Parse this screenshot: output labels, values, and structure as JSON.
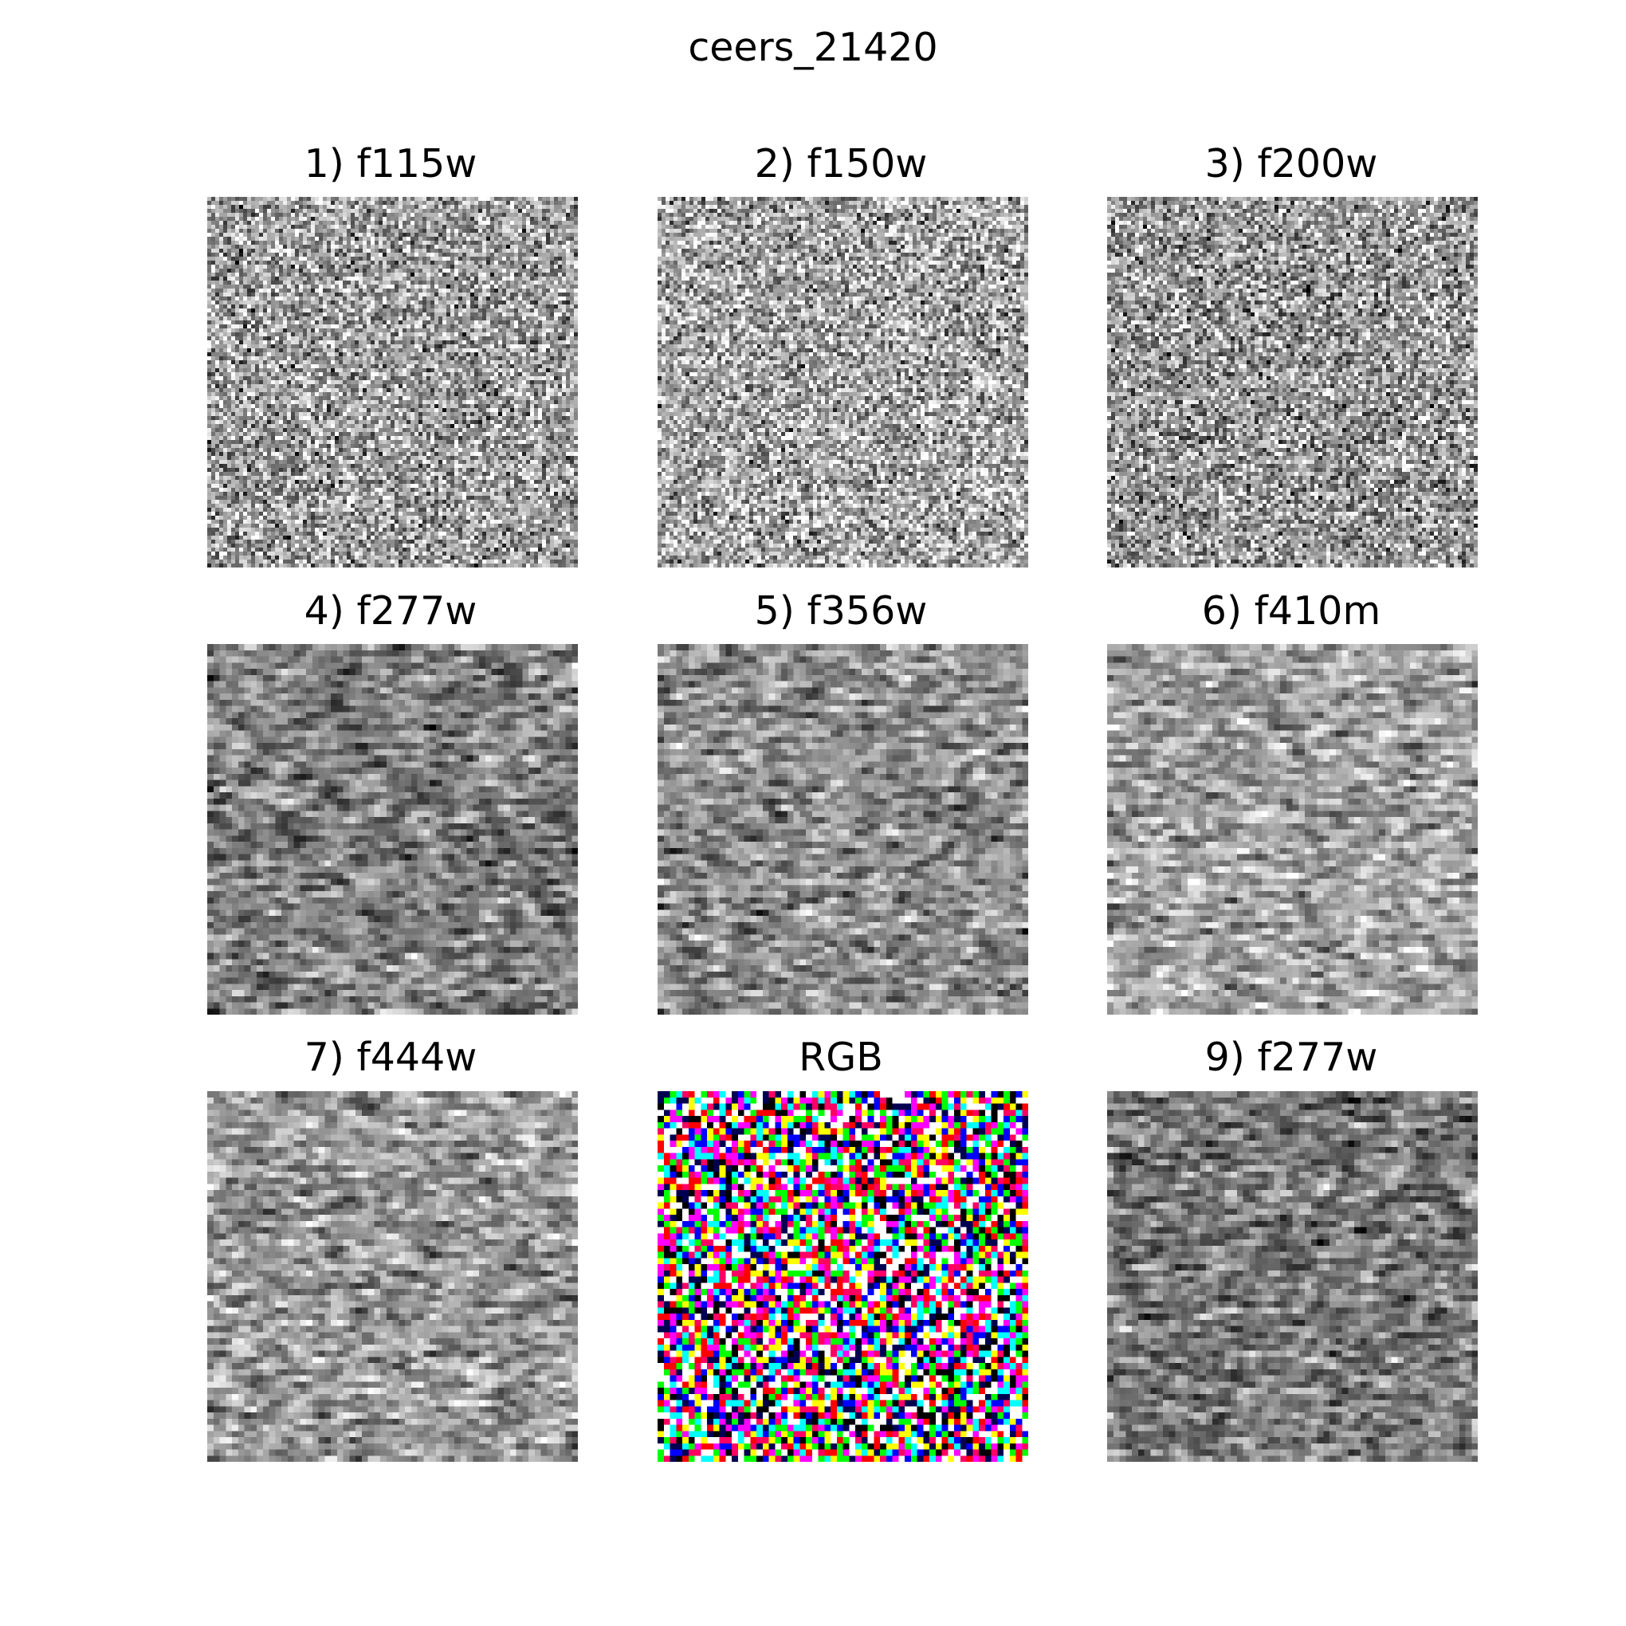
{
  "figure": {
    "title": "ceers_21420"
  },
  "panels": [
    {
      "label": "1) f115w",
      "kind": "grayscale",
      "texture": "fine-noise",
      "mean_brightness": 0.62,
      "seed": 11
    },
    {
      "label": "2) f150w",
      "kind": "grayscale",
      "texture": "fine-noise",
      "mean_brightness": 0.66,
      "seed": 23
    },
    {
      "label": "3) f200w",
      "kind": "grayscale",
      "texture": "fine-noise",
      "mean_brightness": 0.6,
      "seed": 37
    },
    {
      "label": "4) f277w",
      "kind": "grayscale",
      "texture": "coarse-noise",
      "mean_brightness": 0.5,
      "seed": 41
    },
    {
      "label": "5) f356w",
      "kind": "grayscale",
      "texture": "coarse-noise",
      "mean_brightness": 0.56,
      "seed": 53
    },
    {
      "label": "6) f410m",
      "kind": "grayscale",
      "texture": "coarse-noise",
      "mean_brightness": 0.64,
      "seed": 67
    },
    {
      "label": "7) f444w",
      "kind": "grayscale",
      "texture": "coarse-noise",
      "mean_brightness": 0.6,
      "seed": 71
    },
    {
      "label": "RGB",
      "kind": "rgb",
      "texture": "saturated-color-noise",
      "mean_brightness": 0.6,
      "seed": 83
    },
    {
      "label": "9) f277w",
      "kind": "grayscale",
      "texture": "coarse-noise",
      "mean_brightness": 0.48,
      "seed": 97
    }
  ]
}
